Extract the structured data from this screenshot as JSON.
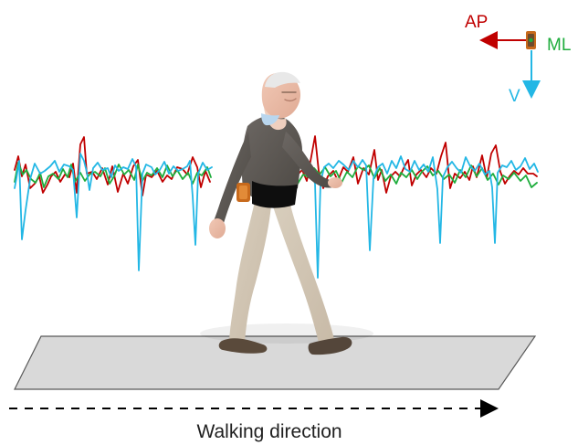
{
  "labels": {
    "ap": "AP",
    "ml": "ML",
    "v": "V",
    "walking_direction": "Walking direction"
  },
  "colors": {
    "ap": "#c00000",
    "ml": "#1fad3d",
    "v": "#23b7e5",
    "sensor": "#c86a1c",
    "floor_fill": "#d9d9d9",
    "floor_stroke": "#595959",
    "caption_text": "#1f1f1f",
    "dashed_arrow": "#000000"
  },
  "icons": {
    "sensor": "sensor-icon",
    "ap_axis": "arrow-left-icon",
    "ml_axis": "sensor-axis-icon",
    "v_axis": "arrow-down-icon",
    "walking_direction": "dashed-arrow-right-icon"
  },
  "scene": {
    "subject": "walking-elderly-man",
    "sensor": "wearable-sensor"
  }
}
